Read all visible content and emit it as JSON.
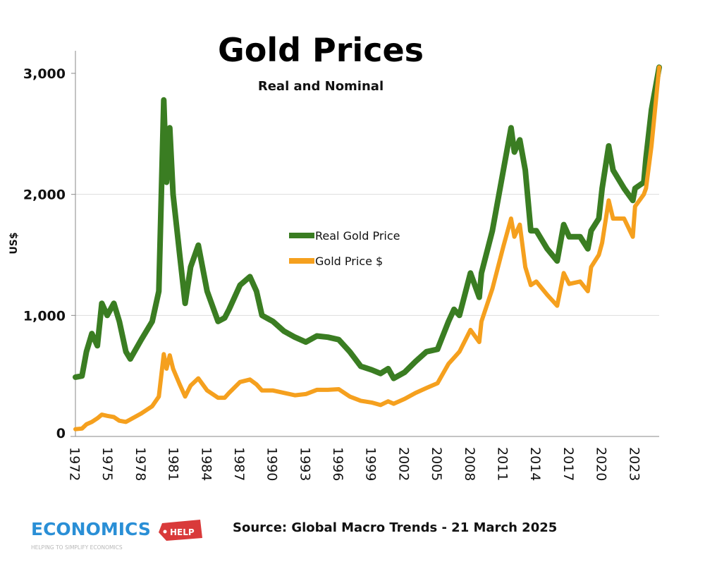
{
  "chart_data": {
    "type": "line",
    "title": "Gold Prices",
    "subtitle": "Real and Nominal",
    "xlabel": "",
    "ylabel": "US$",
    "xlim": [
      1972,
      2025.2
    ],
    "ylim": [
      0,
      3000
    ],
    "yticks": [
      {
        "value": 0,
        "label": "0"
      },
      {
        "value": 1000,
        "label": "1,000"
      },
      {
        "value": 2000,
        "label": "2,000"
      },
      {
        "value": 3000,
        "label": "3,000"
      }
    ],
    "xticks": [
      "1972",
      "1975",
      "1978",
      "1981",
      "1984",
      "1987",
      "1990",
      "1993",
      "1996",
      "1999",
      "2002",
      "2005",
      "2008",
      "2011",
      "2014",
      "2017",
      "2020",
      "2023"
    ],
    "grid": "horizontal",
    "legend_placement": "center",
    "series": [
      {
        "name": "Real Gold Price",
        "color": "#3a7d22",
        "x": [
          1972,
          1972.6,
          1973,
          1973.5,
          1974,
          1974.4,
          1974.9,
          1975.5,
          1976,
          1976.6,
          1977,
          1978,
          1979,
          1979.6,
          1980.05,
          1980.3,
          1980.6,
          1980.9,
          1981.5,
          1982,
          1982.5,
          1983.2,
          1984,
          1985,
          1985.6,
          1986,
          1987,
          1987.9,
          1988.5,
          1989,
          1990,
          1991,
          1992,
          1993,
          1994,
          1995,
          1996,
          1997,
          1998,
          1999,
          1999.8,
          2000.5,
          2001,
          2002,
          2003,
          2004,
          2005,
          2006,
          2006.5,
          2007,
          2008,
          2008.8,
          2009,
          2010,
          2011,
          2011.7,
          2012,
          2012.5,
          2013,
          2013.5,
          2014,
          2015,
          2015.9,
          2016.5,
          2017,
          2018,
          2018.7,
          2019,
          2019.7,
          2020,
          2020.6,
          2021,
          2022,
          2022.8,
          2023,
          2023.8,
          2024,
          2024.5,
          2025.2
        ],
        "values": [
          490,
          500,
          700,
          850,
          750,
          1100,
          1000,
          1100,
          950,
          700,
          640,
          800,
          950,
          1200,
          2780,
          2100,
          2550,
          2000,
          1500,
          1100,
          1400,
          1580,
          1200,
          950,
          980,
          1050,
          1250,
          1320,
          1200,
          1000,
          950,
          870,
          820,
          780,
          830,
          820,
          800,
          700,
          580,
          550,
          520,
          560,
          480,
          530,
          620,
          700,
          720,
          950,
          1050,
          1000,
          1350,
          1150,
          1350,
          1700,
          2200,
          2550,
          2350,
          2450,
          2200,
          1700,
          1700,
          1550,
          1450,
          1750,
          1650,
          1650,
          1550,
          1700,
          1800,
          2050,
          2400,
          2200,
          2050,
          1950,
          2050,
          2100,
          2300,
          2700,
          3050
        ]
      },
      {
        "name": "Gold Price $",
        "color": "#f5a01e",
        "x": [
          1972,
          1972.6,
          1973,
          1973.5,
          1974,
          1974.4,
          1974.9,
          1975.5,
          1976,
          1976.6,
          1977,
          1978,
          1979,
          1979.6,
          1980.05,
          1980.3,
          1980.6,
          1980.9,
          1981.5,
          1982,
          1982.5,
          1983.2,
          1984,
          1985,
          1985.6,
          1986,
          1987,
          1987.9,
          1988.5,
          1989,
          1990,
          1991,
          1992,
          1993,
          1994,
          1995,
          1996,
          1997,
          1998,
          1999,
          1999.8,
          2000.5,
          2001,
          2002,
          2003,
          2004,
          2005,
          2006,
          2006.5,
          2007,
          2008,
          2008.8,
          2009,
          2010,
          2011,
          2011.7,
          2012,
          2012.5,
          2013,
          2013.5,
          2014,
          2015,
          2015.9,
          2016.5,
          2017,
          2018,
          2018.7,
          2019,
          2019.7,
          2020,
          2020.6,
          2021,
          2022,
          2022.8,
          2023,
          2023.8,
          2024,
          2024.5,
          2025.2
        ],
        "values": [
          60,
          65,
          100,
          120,
          150,
          180,
          170,
          160,
          130,
          120,
          140,
          190,
          250,
          330,
          680,
          560,
          670,
          560,
          430,
          330,
          420,
          480,
          380,
          320,
          320,
          360,
          450,
          470,
          430,
          380,
          380,
          360,
          340,
          350,
          385,
          385,
          390,
          330,
          295,
          280,
          260,
          290,
          270,
          310,
          360,
          400,
          440,
          600,
          650,
          700,
          880,
          780,
          950,
          1220,
          1570,
          1800,
          1650,
          1750,
          1400,
          1250,
          1280,
          1170,
          1080,
          1350,
          1260,
          1280,
          1200,
          1400,
          1500,
          1600,
          1950,
          1800,
          1800,
          1650,
          1900,
          2000,
          2050,
          2400,
          3050
        ]
      }
    ]
  },
  "source": "Source: Global Macro Trends - 21 March 2025",
  "logo": {
    "text": "ECONOMICS",
    "tag": "HELP",
    "tagline": "HELPING TO SIMPLIFY ECONOMICS"
  }
}
